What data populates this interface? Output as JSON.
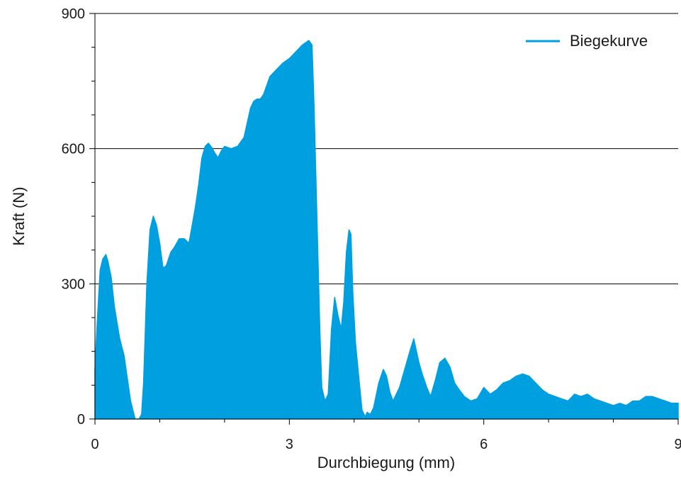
{
  "chart_data": {
    "type": "area",
    "title": "",
    "xlabel": "Durchbiegung (mm)",
    "ylabel": "Kraft (N)",
    "xlim": [
      0,
      9
    ],
    "ylim": [
      0,
      900
    ],
    "xticks": [
      0,
      3,
      6,
      9
    ],
    "yticks": [
      0,
      300,
      600,
      900
    ],
    "grid": {
      "horizontal": true,
      "vertical": false
    },
    "legend": {
      "position": "top-right"
    },
    "series": [
      {
        "name": "Biegekurve",
        "color": "#009fdf",
        "x": [
          0,
          0.03,
          0.08,
          0.12,
          0.17,
          0.2,
          0.25,
          0.3,
          0.38,
          0.45,
          0.5,
          0.55,
          0.62,
          0.68,
          0.72,
          0.75,
          0.8,
          0.85,
          0.9,
          0.95,
          1.0,
          1.05,
          1.1,
          1.17,
          1.22,
          1.3,
          1.38,
          1.45,
          1.5,
          1.55,
          1.6,
          1.65,
          1.7,
          1.75,
          1.8,
          1.85,
          1.9,
          1.95,
          2.0,
          2.1,
          2.2,
          2.3,
          2.4,
          2.45,
          2.5,
          2.55,
          2.6,
          2.7,
          2.8,
          2.9,
          3.0,
          3.1,
          3.2,
          3.3,
          3.35,
          3.38,
          3.42,
          3.47,
          3.5,
          3.55,
          3.6,
          3.65,
          3.7,
          3.75,
          3.8,
          3.84,
          3.88,
          3.92,
          3.95,
          3.98,
          4.02,
          4.08,
          4.12,
          4.17,
          4.2,
          4.25,
          4.3,
          4.38,
          4.45,
          4.5,
          4.55,
          4.6,
          4.7,
          4.8,
          4.87,
          4.92,
          5.0,
          5.05,
          5.12,
          5.18,
          5.25,
          5.32,
          5.4,
          5.48,
          5.55,
          5.62,
          5.7,
          5.8,
          5.9,
          6.0,
          6.1,
          6.2,
          6.3,
          6.4,
          6.5,
          6.6,
          6.7,
          6.8,
          6.9,
          7.0,
          7.1,
          7.2,
          7.3,
          7.4,
          7.5,
          7.6,
          7.7,
          7.8,
          7.9,
          8.0,
          8.1,
          8.2,
          8.3,
          8.4,
          8.5,
          8.6,
          8.7,
          8.8,
          8.9,
          9.0
        ],
        "y": [
          110,
          200,
          330,
          355,
          365,
          350,
          315,
          250,
          180,
          140,
          90,
          40,
          0,
          0,
          10,
          80,
          300,
          420,
          450,
          430,
          390,
          335,
          340,
          370,
          380,
          400,
          400,
          390,
          430,
          470,
          520,
          580,
          605,
          612,
          603,
          590,
          580,
          595,
          605,
          600,
          605,
          625,
          690,
          705,
          710,
          710,
          720,
          760,
          775,
          790,
          800,
          815,
          830,
          840,
          830,
          700,
          480,
          200,
          70,
          40,
          55,
          200,
          270,
          230,
          200,
          260,
          370,
          420,
          410,
          280,
          170,
          80,
          20,
          5,
          15,
          10,
          25,
          80,
          110,
          95,
          60,
          40,
          70,
          120,
          155,
          178,
          125,
          100,
          70,
          50,
          85,
          125,
          135,
          115,
          80,
          65,
          50,
          40,
          45,
          70,
          55,
          65,
          80,
          85,
          95,
          100,
          95,
          80,
          65,
          55,
          50,
          45,
          40,
          55,
          50,
          55,
          45,
          40,
          35,
          30,
          35,
          30,
          40,
          40,
          50,
          50,
          45,
          40,
          35,
          35
        ]
      }
    ]
  }
}
